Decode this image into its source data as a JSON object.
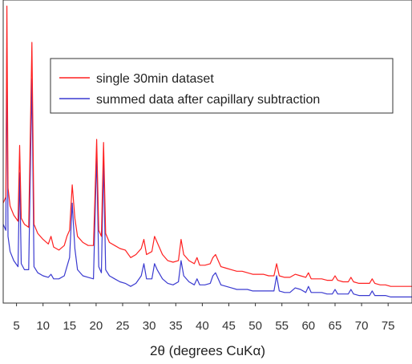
{
  "chart_data": {
    "type": "line",
    "xlabel": "2θ (degrees CuKα)",
    "ylabel": "",
    "xlim": [
      2.5,
      79.5
    ],
    "ylim": [
      0,
      100
    ],
    "x_ticks": [
      "5",
      "10",
      "15",
      "20",
      "25",
      "30",
      "35",
      "40",
      "45",
      "50",
      "55",
      "60",
      "65",
      "70",
      "75"
    ],
    "y_ticks_shown": false,
    "grid": false,
    "legend_position": "top-right",
    "series": [
      {
        "name": "single 30min dataset",
        "color": "#ff2020",
        "points": [
          [
            2.5,
            33
          ],
          [
            3.0,
            35
          ],
          [
            3.2,
            98
          ],
          [
            3.4,
            38
          ],
          [
            3.8,
            32
          ],
          [
            4.5,
            29
          ],
          [
            5.3,
            27
          ],
          [
            5.6,
            52
          ],
          [
            5.9,
            28
          ],
          [
            6.5,
            26
          ],
          [
            7.3,
            25
          ],
          [
            7.9,
            86
          ],
          [
            8.3,
            26
          ],
          [
            9.0,
            23
          ],
          [
            10.0,
            21
          ],
          [
            11.0,
            19.5
          ],
          [
            11.5,
            22
          ],
          [
            12.0,
            18.5
          ],
          [
            13.0,
            17.5
          ],
          [
            14.0,
            19
          ],
          [
            14.5,
            22
          ],
          [
            15.0,
            24
          ],
          [
            15.5,
            39
          ],
          [
            16.0,
            28
          ],
          [
            16.5,
            22
          ],
          [
            17.5,
            20
          ],
          [
            18.5,
            19
          ],
          [
            19.5,
            19
          ],
          [
            20.1,
            54
          ],
          [
            20.5,
            24
          ],
          [
            21.0,
            22
          ],
          [
            21.4,
            53
          ],
          [
            21.8,
            23
          ],
          [
            22.5,
            20
          ],
          [
            23.5,
            19
          ],
          [
            24.5,
            18
          ],
          [
            25.5,
            17.5
          ],
          [
            26.5,
            15
          ],
          [
            27.5,
            16
          ],
          [
            28.5,
            18
          ],
          [
            29.0,
            21
          ],
          [
            29.5,
            16
          ],
          [
            30.5,
            17
          ],
          [
            31.0,
            22
          ],
          [
            31.5,
            20
          ],
          [
            32.5,
            16
          ],
          [
            33.5,
            14
          ],
          [
            34.5,
            13.5
          ],
          [
            35.5,
            14
          ],
          [
            36.0,
            21
          ],
          [
            36.5,
            16
          ],
          [
            37.5,
            14
          ],
          [
            38.5,
            13
          ],
          [
            39.0,
            15
          ],
          [
            39.5,
            12.5
          ],
          [
            40.5,
            12.5
          ],
          [
            41.5,
            13
          ],
          [
            42.0,
            15
          ],
          [
            42.5,
            16
          ],
          [
            43.5,
            12
          ],
          [
            44.5,
            11.5
          ],
          [
            45.5,
            11
          ],
          [
            46.5,
            10.5
          ],
          [
            47.5,
            10.5
          ],
          [
            48.5,
            10
          ],
          [
            49.5,
            9.5
          ],
          [
            50.5,
            9.5
          ],
          [
            51.5,
            9.5
          ],
          [
            52.5,
            9
          ],
          [
            53.5,
            9
          ],
          [
            54.0,
            13
          ],
          [
            54.5,
            9
          ],
          [
            55.5,
            8.5
          ],
          [
            56.5,
            8.5
          ],
          [
            57.5,
            9.5
          ],
          [
            58.5,
            9
          ],
          [
            59.5,
            8.5
          ],
          [
            60.0,
            10
          ],
          [
            60.5,
            8
          ],
          [
            61.5,
            8
          ],
          [
            62.5,
            8
          ],
          [
            63.5,
            7.5
          ],
          [
            64.5,
            7.5
          ],
          [
            65.0,
            9
          ],
          [
            65.5,
            7.5
          ],
          [
            66.5,
            7
          ],
          [
            67.5,
            7
          ],
          [
            68.0,
            8.5
          ],
          [
            68.5,
            7
          ],
          [
            69.5,
            6.5
          ],
          [
            70.5,
            6.5
          ],
          [
            71.5,
            6.5
          ],
          [
            72.0,
            8
          ],
          [
            72.5,
            6.5
          ],
          [
            73.5,
            6
          ],
          [
            74.5,
            6
          ],
          [
            75.5,
            5.5
          ],
          [
            76.5,
            5.5
          ],
          [
            77.5,
            5.5
          ],
          [
            78.5,
            5.5
          ],
          [
            79.5,
            5.5
          ]
        ]
      },
      {
        "name": "summed data after capillary subtraction",
        "color": "#3a3ad0",
        "points": [
          [
            2.5,
            26
          ],
          [
            3.0,
            24
          ],
          [
            3.2,
            85
          ],
          [
            3.4,
            22
          ],
          [
            3.8,
            17
          ],
          [
            4.5,
            14
          ],
          [
            5.3,
            12
          ],
          [
            5.6,
            43
          ],
          [
            5.9,
            13
          ],
          [
            6.5,
            11
          ],
          [
            7.3,
            11
          ],
          [
            7.9,
            74
          ],
          [
            8.3,
            12
          ],
          [
            9.0,
            10
          ],
          [
            10.0,
            9
          ],
          [
            11.0,
            8.5
          ],
          [
            11.5,
            9.5
          ],
          [
            12.0,
            8
          ],
          [
            13.0,
            8
          ],
          [
            14.0,
            9
          ],
          [
            14.5,
            12
          ],
          [
            15.0,
            15
          ],
          [
            15.5,
            33
          ],
          [
            16.0,
            18
          ],
          [
            16.5,
            11
          ],
          [
            17.5,
            9
          ],
          [
            18.5,
            8.5
          ],
          [
            19.5,
            8
          ],
          [
            20.1,
            49
          ],
          [
            20.5,
            12
          ],
          [
            21.0,
            10
          ],
          [
            21.4,
            47
          ],
          [
            21.8,
            11
          ],
          [
            22.5,
            9
          ],
          [
            23.5,
            8
          ],
          [
            24.5,
            7
          ],
          [
            25.5,
            6.5
          ],
          [
            26.5,
            5.5
          ],
          [
            27.5,
            6.5
          ],
          [
            28.5,
            9
          ],
          [
            29.0,
            13
          ],
          [
            29.5,
            8
          ],
          [
            30.5,
            8
          ],
          [
            31.0,
            13
          ],
          [
            31.5,
            11
          ],
          [
            32.5,
            8
          ],
          [
            33.5,
            6.5
          ],
          [
            34.5,
            6
          ],
          [
            35.5,
            7
          ],
          [
            36.0,
            14
          ],
          [
            36.5,
            9
          ],
          [
            37.5,
            7
          ],
          [
            38.5,
            6
          ],
          [
            39.0,
            8
          ],
          [
            39.5,
            6
          ],
          [
            40.5,
            6
          ],
          [
            41.5,
            6.5
          ],
          [
            42.0,
            9
          ],
          [
            42.5,
            10
          ],
          [
            43.5,
            6
          ],
          [
            44.5,
            5.5
          ],
          [
            45.5,
            5
          ],
          [
            46.5,
            4.5
          ],
          [
            47.5,
            4.5
          ],
          [
            48.5,
            4.5
          ],
          [
            49.5,
            4
          ],
          [
            50.5,
            4
          ],
          [
            51.5,
            4
          ],
          [
            52.5,
            4
          ],
          [
            53.5,
            4
          ],
          [
            54.0,
            9
          ],
          [
            54.5,
            4
          ],
          [
            55.5,
            3.5
          ],
          [
            56.5,
            3.5
          ],
          [
            57.5,
            5
          ],
          [
            58.5,
            4.5
          ],
          [
            59.5,
            3.5
          ],
          [
            60.0,
            5.5
          ],
          [
            60.5,
            3.5
          ],
          [
            61.5,
            3.5
          ],
          [
            62.5,
            3.5
          ],
          [
            63.5,
            3
          ],
          [
            64.5,
            3
          ],
          [
            65.0,
            4.5
          ],
          [
            65.5,
            3
          ],
          [
            66.5,
            3
          ],
          [
            67.5,
            3
          ],
          [
            68.0,
            4.5
          ],
          [
            68.5,
            3
          ],
          [
            69.5,
            2.5
          ],
          [
            70.5,
            2.5
          ],
          [
            71.5,
            2.5
          ],
          [
            72.0,
            4
          ],
          [
            72.5,
            2.5
          ],
          [
            73.5,
            2.5
          ],
          [
            74.5,
            2.5
          ],
          [
            75.5,
            2
          ],
          [
            76.5,
            2
          ],
          [
            77.5,
            2
          ],
          [
            78.5,
            2
          ],
          [
            79.5,
            2
          ]
        ]
      }
    ]
  }
}
